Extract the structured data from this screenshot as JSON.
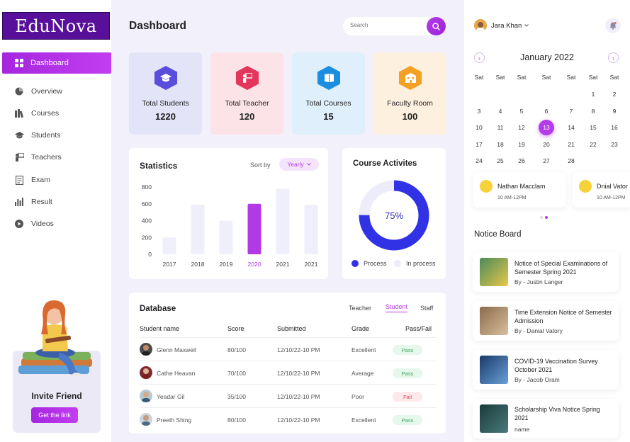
{
  "sidebar": {
    "logo": "EduNova",
    "items": [
      {
        "label": "Dashboard",
        "icon": "grid-icon"
      },
      {
        "label": "Overview",
        "icon": "chart-icon"
      },
      {
        "label": "Courses",
        "icon": "books-icon"
      },
      {
        "label": "Students",
        "icon": "graduation-cap-icon"
      },
      {
        "label": "Teachers",
        "icon": "teacher-icon"
      },
      {
        "label": "Exam",
        "icon": "exam-icon"
      },
      {
        "label": "Result",
        "icon": "bar-chart-icon"
      },
      {
        "label": "Videos",
        "icon": "play-icon"
      }
    ],
    "invite": {
      "title": "Invite Friend",
      "button": "Get the link"
    }
  },
  "header": {
    "title": "Dashboard",
    "search_placeholder": "Search"
  },
  "cards": [
    {
      "label": "Total Students",
      "value": "1220",
      "bg": "#e4e4f8",
      "icon_color": "#5b4ddb"
    },
    {
      "label": "Total Teacher",
      "value": "120",
      "bg": "#fbe3e8",
      "icon_color": "#e2365b"
    },
    {
      "label": "Total Courses",
      "value": "15",
      "bg": "#dff0fc",
      "icon_color": "#1b8ee0"
    },
    {
      "label": "Faculty Room",
      "value": "100",
      "bg": "#fdf0df",
      "icon_color": "#f4a024"
    }
  ],
  "statistics": {
    "title": "Statistics",
    "sort_label": "Sort by",
    "sort_value": "Yearly"
  },
  "chart_data": {
    "type": "bar",
    "categories": [
      "2017",
      "2018",
      "2019",
      "2020",
      "2021",
      "2021"
    ],
    "values": [
      200,
      590,
      400,
      600,
      780,
      590
    ],
    "highlight_index": 3,
    "ylim": [
      0,
      800
    ],
    "yticks": [
      "0",
      "200",
      "400",
      "600",
      "800"
    ],
    "colors": {
      "bar": "#efeffb",
      "highlight": "#b23ae6"
    }
  },
  "course_activities": {
    "title": "Course Activites",
    "percent": 75,
    "percent_label": "75%",
    "legend": [
      {
        "label": "Process",
        "color": "#3131e6"
      },
      {
        "label": "In process",
        "color": "#ececfb"
      }
    ]
  },
  "database": {
    "title": "Database",
    "tabs": [
      "Teacher",
      "Student",
      "Staff"
    ],
    "active_tab": "Student",
    "columns": [
      "Student name",
      "Score",
      "Submitted",
      "Grade",
      "Pass/Fail"
    ],
    "rows": [
      {
        "name": "Glenn Maxwell",
        "score": "80/100",
        "submitted": "12/10/22-10 PM",
        "grade": "Excellent",
        "status": "Pass"
      },
      {
        "name": "Cathe Heavan",
        "score": "70/100",
        "submitted": "12/10/22-10 PM",
        "grade": "Average",
        "status": "Pass"
      },
      {
        "name": "Yeadar Gil",
        "score": "35/100",
        "submitted": "12/10/22-10 PM",
        "grade": "Poor",
        "status": "Fail"
      },
      {
        "name": "Preeth Shing",
        "score": "80/100",
        "submitted": "12/10/22-10 PM",
        "grade": "Excellent",
        "status": "Pass"
      }
    ]
  },
  "user": {
    "name": "Jara Khan"
  },
  "calendar": {
    "month": "January 2022",
    "weekdays": [
      "Sat",
      "Sat",
      "Sat",
      "Sat",
      "Sat",
      "Sat",
      "Sat"
    ],
    "weeks": [
      [
        "",
        "",
        "",
        "",
        "",
        "1",
        "2"
      ],
      [
        "3",
        "4",
        "5",
        "6",
        "7",
        "8",
        "9"
      ],
      [
        "10",
        "11",
        "12",
        "13",
        "14",
        "15",
        "16"
      ],
      [
        "17",
        "18",
        "19",
        "20",
        "21",
        "22",
        "23"
      ],
      [
        "24",
        "25",
        "26",
        "27",
        "28",
        "",
        ""
      ]
    ],
    "selected": "13"
  },
  "events": [
    {
      "name": "Nathan Macclam",
      "time": "10 AM-12PM"
    },
    {
      "name": "Dnial Vator",
      "time": "10 AM-12PM"
    }
  ],
  "notice_board": {
    "title": "Notice Board",
    "items": [
      {
        "title": "Notice of Special Examinations of Semester Spring 2021",
        "by": "By - Justin Langer"
      },
      {
        "title": "Time Extension Notice of Semester Admission",
        "by": "By - Danial Vatory"
      },
      {
        "title": "COVID-19 Vaccination Survey October 2021",
        "by": "By - Jacob Oram"
      },
      {
        "title": "Scholarship Viva Notice Spring 2021",
        "by": "name"
      }
    ]
  }
}
